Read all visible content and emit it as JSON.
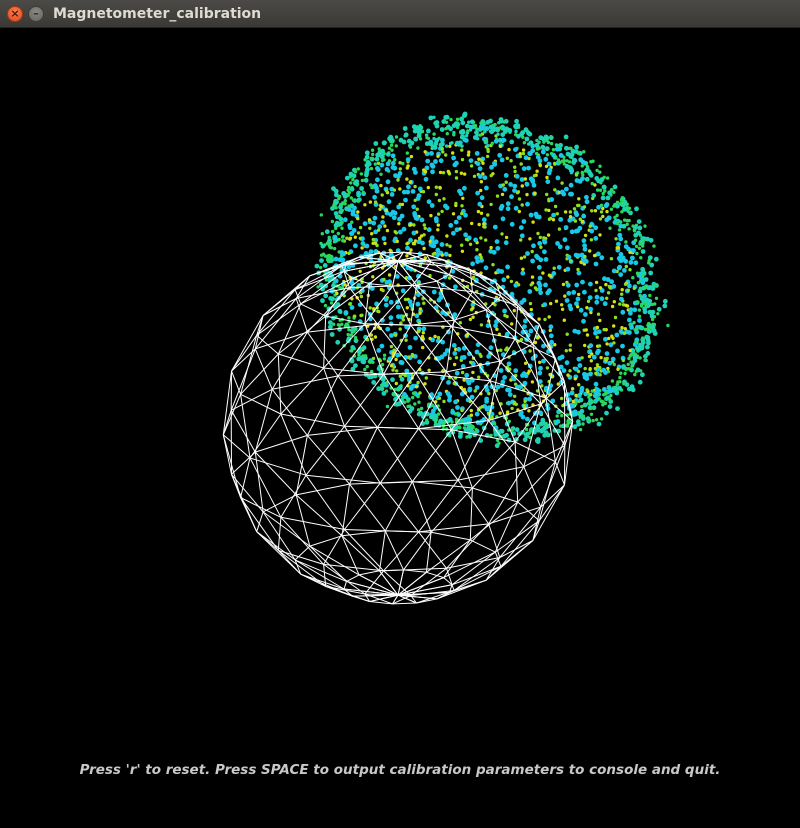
{
  "window": {
    "title": "Magnetometer_calibration",
    "close_glyph": "×",
    "minimize_glyph": "–"
  },
  "viewport": {
    "hint_text": "Press 'r' to reset. Press SPACE to output calibration parameters to console and quit."
  },
  "scene": {
    "wireframe_color": "#ffffff",
    "background_color": "#000000",
    "point_colors": [
      "#19c8e6",
      "#1fd2b4",
      "#2ad85a",
      "#8ee01e",
      "#d6e014"
    ]
  }
}
